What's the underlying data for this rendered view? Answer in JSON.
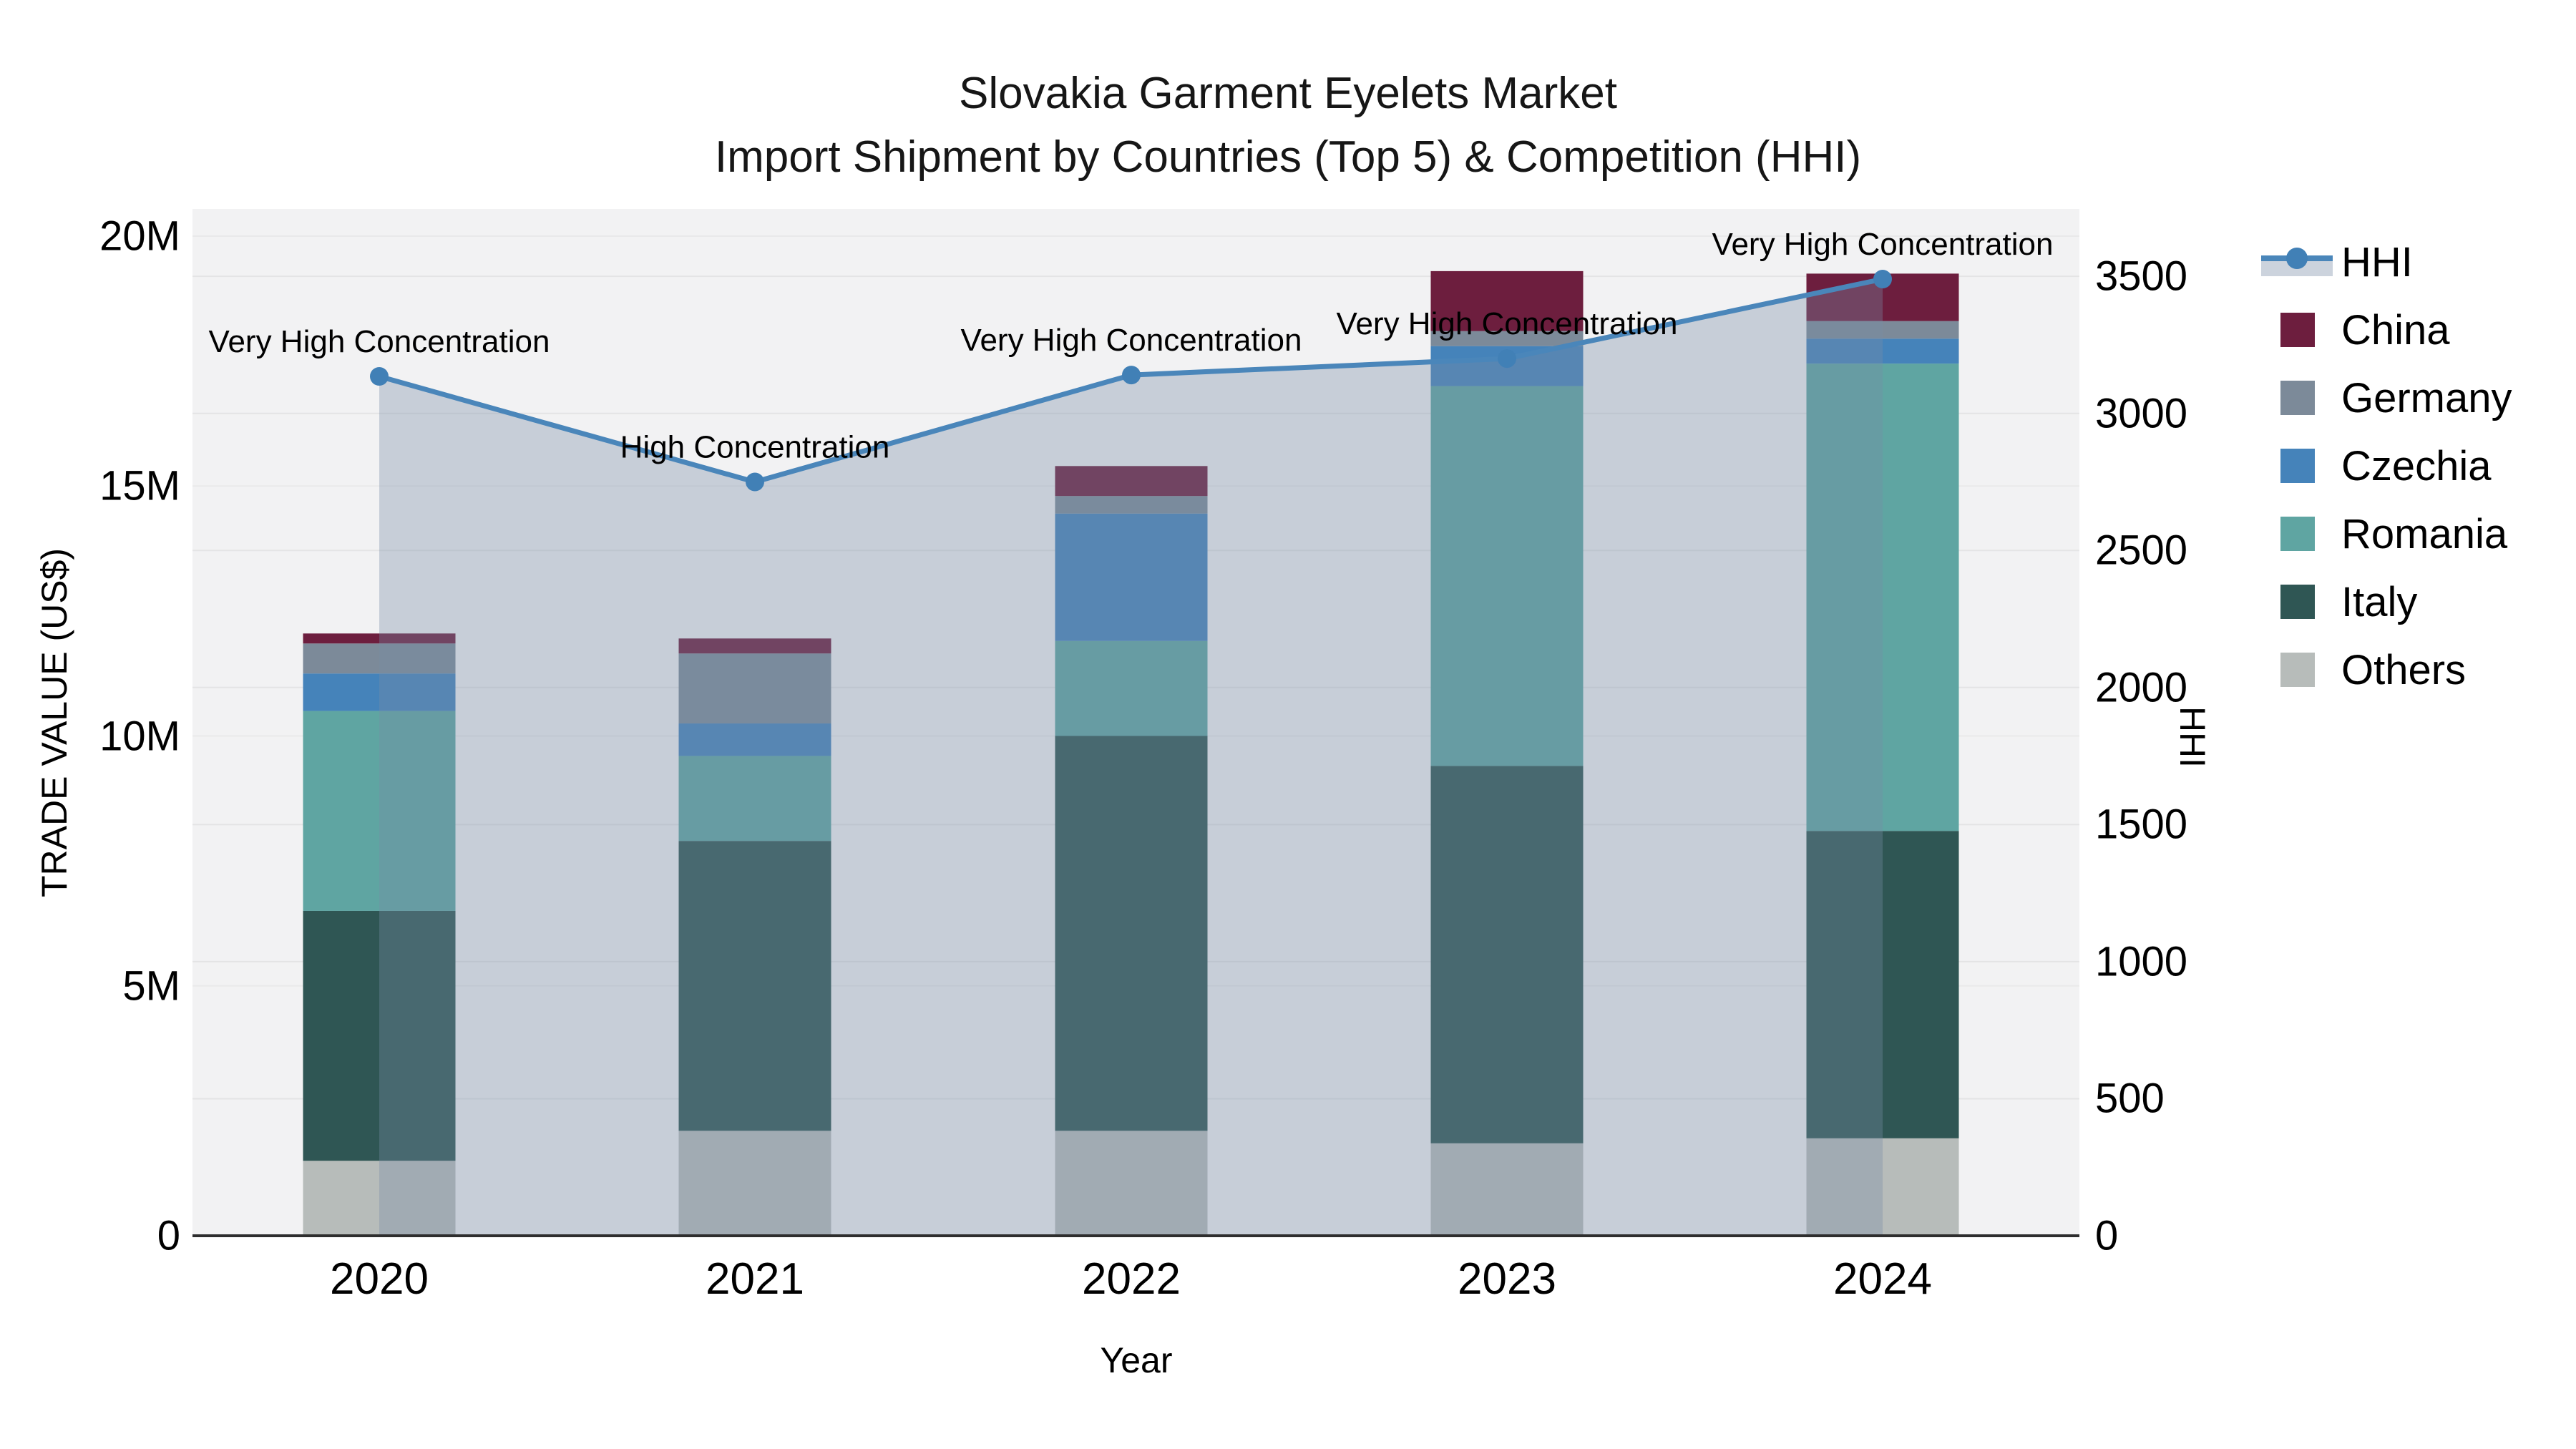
{
  "title": {
    "line1": "Slovakia Garment Eyelets Market",
    "line2": "Import Shipment by Countries (Top 5) & Competition (HHI)"
  },
  "axes": {
    "x_title": "Year",
    "y_left_title": "TRADE VALUE (US$)",
    "y_right_title": "HHI",
    "x_ticks": [
      "2020",
      "2021",
      "2022",
      "2023",
      "2024"
    ],
    "y_left_ticks": [
      {
        "value": 0,
        "label": "0"
      },
      {
        "value": 5,
        "label": "5M"
      },
      {
        "value": 10,
        "label": "10M"
      },
      {
        "value": 15,
        "label": "15M"
      },
      {
        "value": 20,
        "label": "20M"
      }
    ],
    "y_right_ticks": [
      {
        "value": 0,
        "label": "0"
      },
      {
        "value": 500,
        "label": "500"
      },
      {
        "value": 1000,
        "label": "1000"
      },
      {
        "value": 1500,
        "label": "1500"
      },
      {
        "value": 2000,
        "label": "2000"
      },
      {
        "value": 2500,
        "label": "2500"
      },
      {
        "value": 3000,
        "label": "3000"
      },
      {
        "value": 3500,
        "label": "3500"
      }
    ]
  },
  "chart_data": {
    "type": "bar+line",
    "categories": [
      "2020",
      "2021",
      "2022",
      "2023",
      "2024"
    ],
    "bar_value_unit": "million US$ (trade value)",
    "stack_bottom_to_top": [
      "Others",
      "Italy",
      "Romania",
      "Czechia",
      "Germany",
      "China"
    ],
    "series": [
      {
        "name": "China",
        "color": "#6d1e3e",
        "values": [
          0.2,
          0.3,
          0.6,
          1.2,
          0.95
        ]
      },
      {
        "name": "Germany",
        "color": "#7c8a99",
        "values": [
          0.6,
          1.4,
          0.35,
          0.3,
          0.35
        ]
      },
      {
        "name": "Czechia",
        "color": "#4583ba",
        "values": [
          0.75,
          0.65,
          2.55,
          0.8,
          0.5
        ]
      },
      {
        "name": "Romania",
        "color": "#5fa5a2",
        "values": [
          4.0,
          1.7,
          1.9,
          7.6,
          9.35
        ]
      },
      {
        "name": "Italy",
        "color": "#2f5654",
        "values": [
          5.0,
          5.8,
          7.9,
          7.55,
          6.15
        ]
      },
      {
        "name": "Others",
        "color": "#b7bcba",
        "values": [
          1.5,
          2.1,
          2.1,
          1.85,
          1.95
        ]
      }
    ],
    "bar_totals": [
      12.05,
      11.95,
      15.4,
      19.3,
      19.25
    ],
    "hhi_line": {
      "name": "HHI",
      "color": "#4a86ba",
      "marker_color": "#4180b6",
      "fill_color": "rgba(120,140,165,0.35)",
      "values": [
        3135,
        2750,
        3140,
        3200,
        3490
      ]
    },
    "y_left_range": [
      0,
      20.5
    ],
    "y_right_range": [
      0,
      3747
    ],
    "grid": "horizontal, right-axis every 500 and left-axis every 5M, on",
    "legend_position": "right",
    "annotations": [
      {
        "category": "2020",
        "text": "Very High Concentration"
      },
      {
        "category": "2021",
        "text": "High Concentration"
      },
      {
        "category": "2022",
        "text": "Very High Concentration"
      },
      {
        "category": "2023",
        "text": "Very High Concentration"
      },
      {
        "category": "2024",
        "text": "Very High Concentration"
      }
    ]
  },
  "legend": {
    "items": [
      "HHI",
      "China",
      "Germany",
      "Czechia",
      "Romania",
      "Italy",
      "Others"
    ]
  }
}
